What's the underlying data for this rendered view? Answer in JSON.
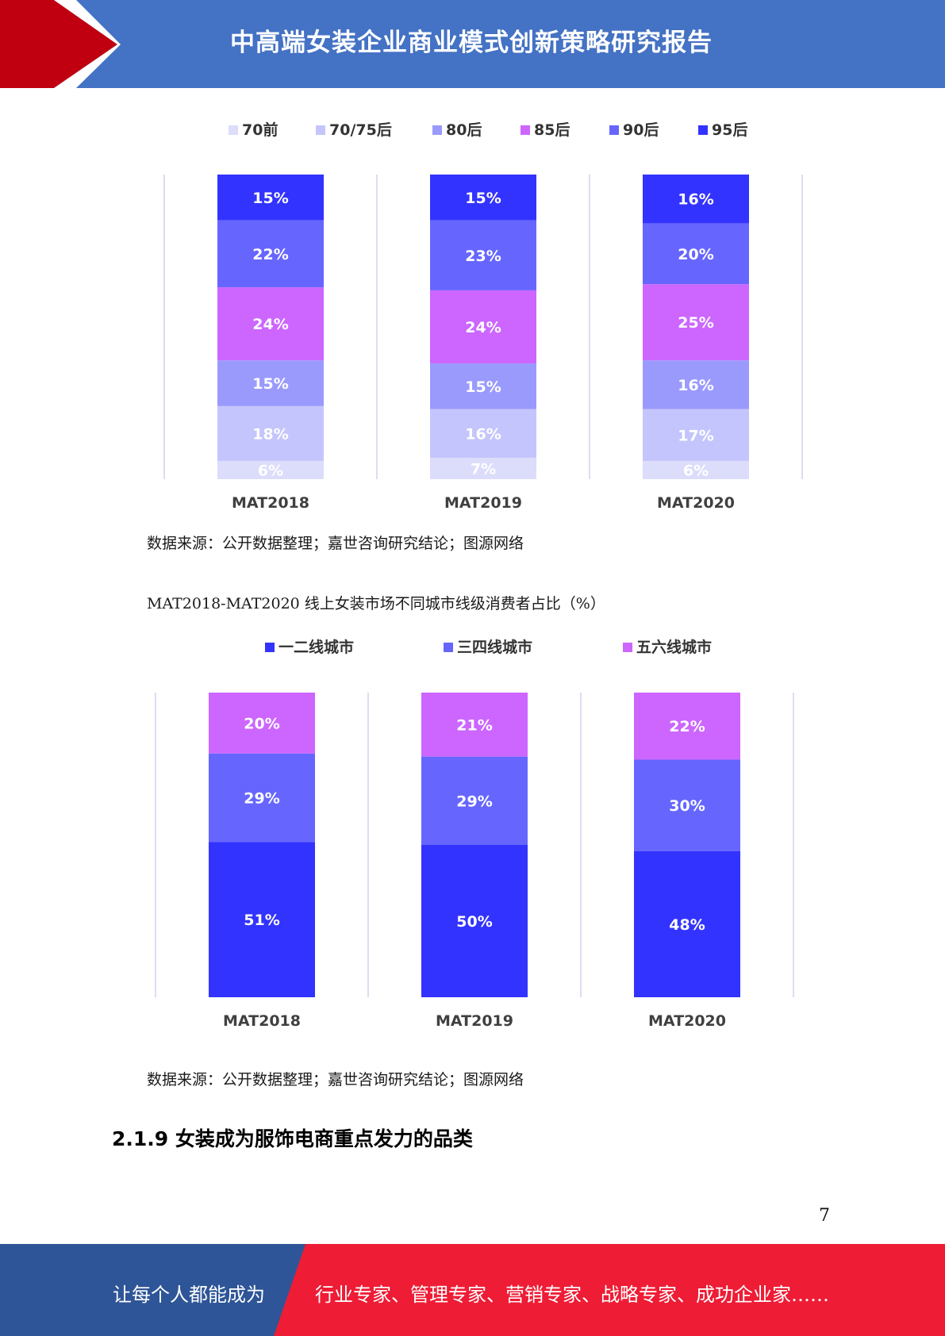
{
  "header": {
    "title": "中高端女装企业商业模式创新策略研究报告",
    "colors": {
      "band": "#4472c4",
      "chevron": "#c00010"
    }
  },
  "chart_data": [
    {
      "type": "bar",
      "stacked": true,
      "categories": [
        "MAT2018",
        "MAT2019",
        "MAT2020"
      ],
      "series": [
        {
          "name": "70前",
          "values": [
            6,
            7,
            6
          ],
          "color": "#dcdcfb"
        },
        {
          "name": "70/75后",
          "values": [
            18,
            16,
            17
          ],
          "color": "#c5c5fd"
        },
        {
          "name": "80后",
          "values": [
            15,
            15,
            16
          ],
          "color": "#9a9afd"
        },
        {
          "name": "85后",
          "values": [
            24,
            24,
            25
          ],
          "color": "#cc66ff"
        },
        {
          "name": "90后",
          "values": [
            22,
            23,
            20
          ],
          "color": "#6666ff"
        },
        {
          "name": "95后",
          "values": [
            15,
            15,
            16
          ],
          "color": "#3333ff"
        }
      ],
      "ylim": [
        0,
        100
      ],
      "legend": "top",
      "unit": "%"
    },
    {
      "type": "bar",
      "stacked": true,
      "categories": [
        "MAT2018",
        "MAT2019",
        "MAT2020"
      ],
      "series": [
        {
          "name": "一二线城市",
          "values": [
            51,
            50,
            48
          ],
          "color": "#3333ff"
        },
        {
          "name": "三四线城市",
          "values": [
            29,
            29,
            30
          ],
          "color": "#6666ff"
        },
        {
          "name": "五六线城市",
          "values": [
            20,
            21,
            22
          ],
          "color": "#cc66ff"
        }
      ],
      "ylim": [
        0,
        100
      ],
      "legend": "top",
      "unit": "%"
    }
  ],
  "charts_text": {
    "source1": "数据来源：公开数据整理；嘉世咨询研究结论；图源网络",
    "caption2": "MAT2018-MAT2020 线上女装市场不同城市线级消费者占比（%）",
    "source2": "数据来源：公开数据整理；嘉世咨询研究结论；图源网络"
  },
  "section_heading": "2.1.9 女装成为服饰电商重点发力的品类",
  "page_number": "7",
  "footer": {
    "left_text": "让每个人都能成为",
    "right_text": "行业专家、管理专家、营销专家、战略专家、成功企业家……",
    "colors": {
      "left": "#2e5597",
      "right": "#ee1c35"
    }
  }
}
